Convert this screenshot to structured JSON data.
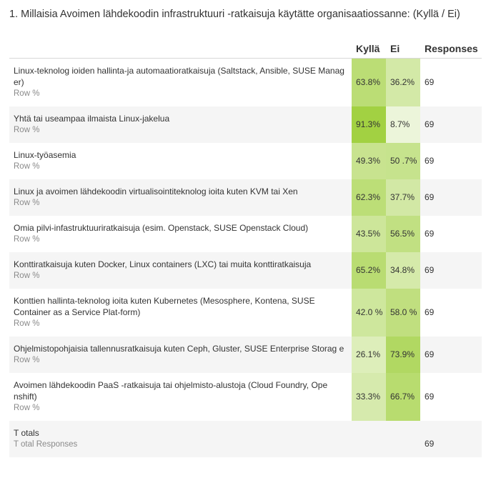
{
  "title": "1. Millaisia Avoimen  lähdekoodin infrastruktuuri -ratkaisuja käytätte organisaatiossanne: (Kyllä / Ei)",
  "chart_data": {
    "type": "table",
    "columns": [
      "Kyllä",
      "Ei",
      "Responses"
    ],
    "row_sublabel": "Row %",
    "rows": [
      {
        "label": "Linux-teknolog ioiden hallinta-ja automaatioratkaisuja (Saltstack, Ansible, SUSE Manag er)",
        "values": [
          "63.8%",
          "36.2%"
        ],
        "responses": "69"
      },
      {
        "label": "Yhtä tai useampaa ilmaista Linux-jakelua",
        "values": [
          "91.3%",
          "8.7%"
        ],
        "responses": "69"
      },
      {
        "label": "Linux-työasemia",
        "values": [
          "49.3%",
          "50 .7%"
        ],
        "responses": "69"
      },
      {
        "label": "Linux ja avoimen lähdekoodin virtualisointiteknolog ioita kuten KVM tai Xen",
        "values": [
          "62.3%",
          "37.7%"
        ],
        "responses": "69"
      },
      {
        "label": "Omia pilvi-infastruktuuriratkaisuja (esim. Openstack, SUSE Openstack Cloud)",
        "values": [
          "43.5%",
          "56.5%"
        ],
        "responses": "69"
      },
      {
        "label": "Konttiratkaisuja kuten Docker, Linux containers (LXC) tai muita konttiratkaisuja",
        "values": [
          "65.2%",
          "34.8%"
        ],
        "responses": "69"
      },
      {
        "label": "Konttien hallinta-teknolog ioita kuten Kubernetes (Mesosphere, Kontena, SUSE Container as a Service Plat-form)",
        "values": [
          "42.0 %",
          "58.0 %"
        ],
        "responses": "69"
      },
      {
        "label": "Ohjelmistopohjaisia tallennusratkaisuja kuten Ceph, Gluster, SUSE Enterprise Storag e",
        "values": [
          "26.1%",
          "73.9%"
        ],
        "responses": "69"
      },
      {
        "label": "Avoimen lähdekoodin PaaS -ratkaisuja tai ohjelmisto-alustoja (Cloud Foundry, Ope nshift)",
        "values": [
          "33.3%",
          "66.7%"
        ],
        "responses": "69"
      }
    ],
    "totals": {
      "label": "T otals",
      "sublabel": "T otal Responses",
      "responses": "69"
    },
    "colors": {
      "heat_high": "#9acd32",
      "heat_low": "#f4f9ea",
      "alt_row": "#f5f5f5"
    }
  }
}
